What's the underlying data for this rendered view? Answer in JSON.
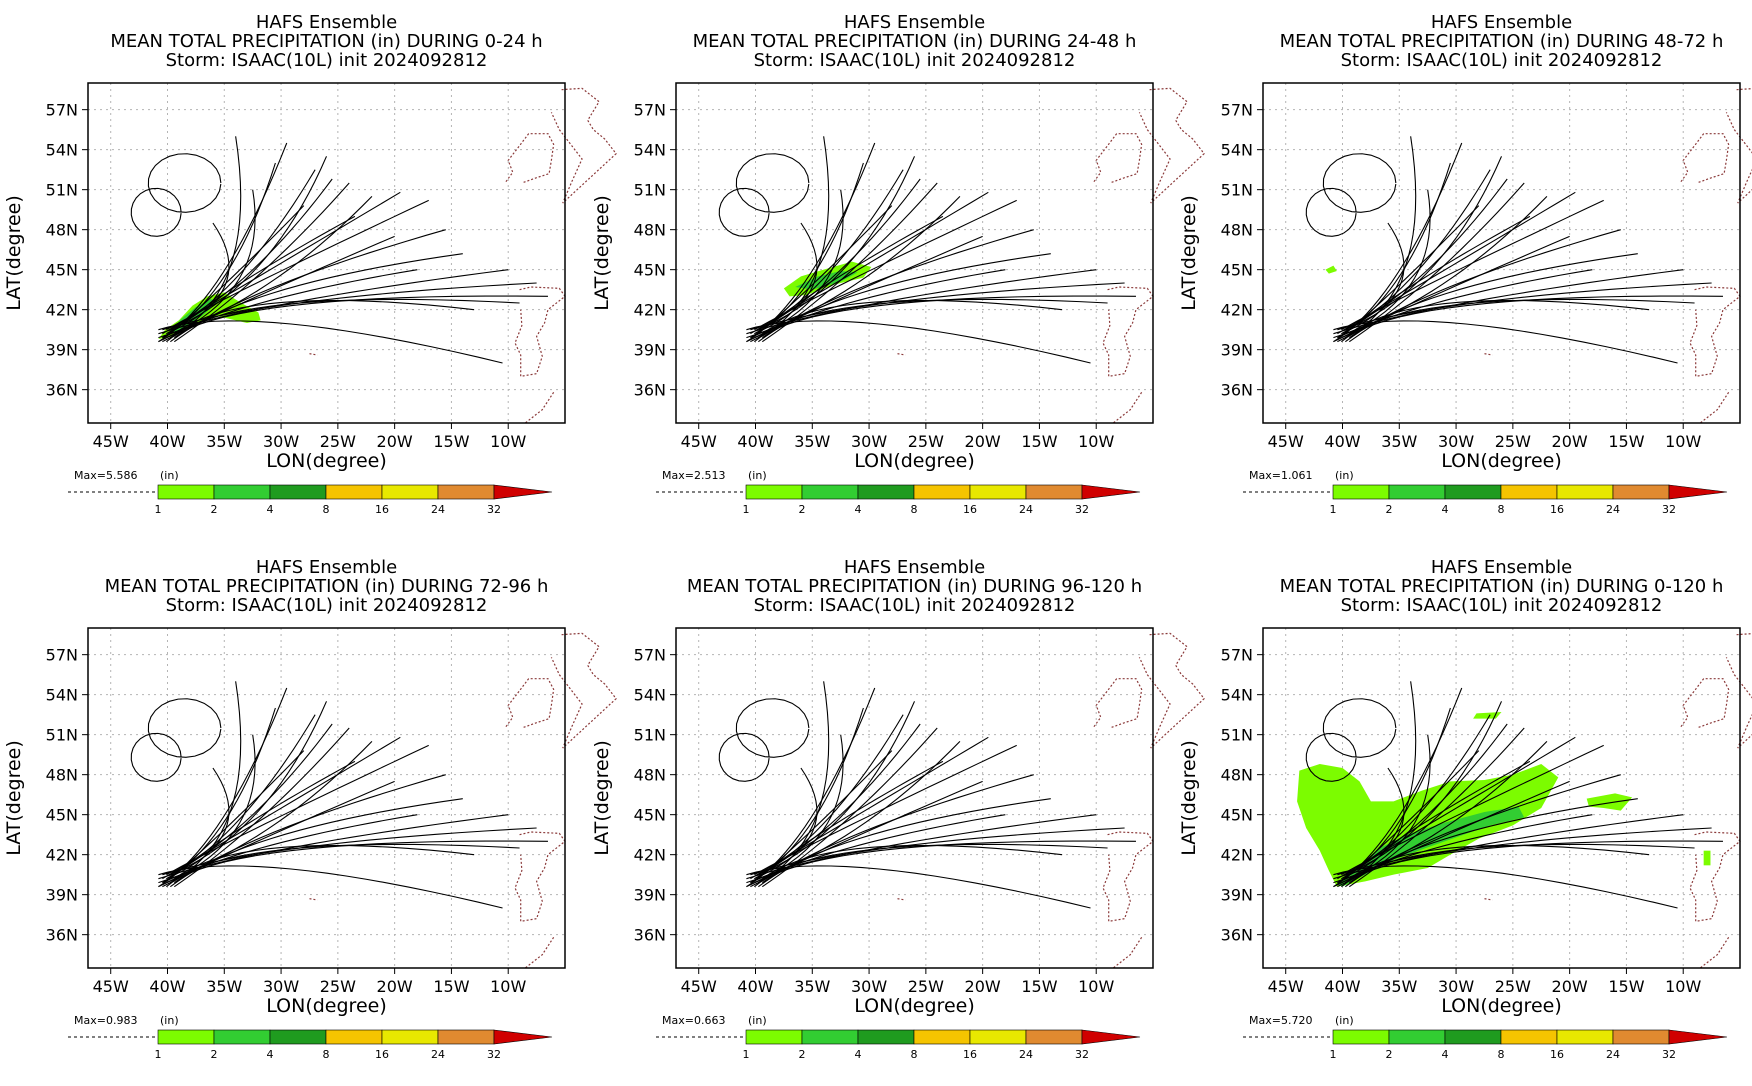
{
  "colors": {
    "track": "#000000",
    "grid": "#b4b4b4",
    "coast": "#8b3a3a",
    "precip_light": "#7cfc00",
    "precip_mid": "#32cd32"
  },
  "common": {
    "line1": "HAFS Ensemble",
    "line3": "Storm: ISAAC(10L) init 2024092812",
    "xlabel": "LON(degree)",
    "ylabel": "LAT(degree)",
    "units": "(in)",
    "x_ticks": [
      "45W",
      "40W",
      "35W",
      "30W",
      "25W",
      "20W",
      "15W",
      "10W"
    ],
    "y_ticks": [
      "36N",
      "39N",
      "42N",
      "45N",
      "48N",
      "51N",
      "54N",
      "57N"
    ],
    "colorbar_labels": [
      "1",
      "2",
      "4",
      "8",
      "16",
      "24",
      "32"
    ],
    "colorbar_colors": [
      "#7cfc00",
      "#32cd32",
      "#1f9b1f",
      "#f5c400",
      "#e8e800",
      "#e08a30",
      "#d00000"
    ]
  },
  "chart_data": [
    {
      "type": "map",
      "title": "MEAN TOTAL PRECIPITATION (in) DURING  0-24 h",
      "max_label": "Max=5.586",
      "xlim": [
        -47,
        -5
      ],
      "ylim": [
        33.5,
        59
      ],
      "precip": [
        {
          "level": 1,
          "polygon": [
            [
              -40.8,
              39.8
            ],
            [
              -40.2,
              40.5
            ],
            [
              -39.0,
              41.2
            ],
            [
              -37.8,
              42.3
            ],
            [
              -36.5,
              43.0
            ],
            [
              -35.0,
              43.3
            ],
            [
              -33.5,
              42.5
            ],
            [
              -32.0,
              41.8
            ],
            [
              -31.8,
              41.2
            ],
            [
              -33.0,
              41.0
            ],
            [
              -35.5,
              41.5
            ],
            [
              -37.5,
              41.0
            ],
            [
              -39.5,
              40.0
            ]
          ]
        },
        {
          "level": 2,
          "polygon": [
            [
              -40.0,
              40.2
            ],
            [
              -38.8,
              41.3
            ],
            [
              -37.5,
              42.2
            ],
            [
              -36.2,
              42.8
            ],
            [
              -35.5,
              42.6
            ],
            [
              -37.0,
              41.5
            ],
            [
              -39.0,
              40.4
            ]
          ]
        }
      ]
    },
    {
      "type": "map",
      "title": "MEAN TOTAL PRECIPITATION (in) DURING 24-48 h",
      "max_label": "Max=2.513",
      "xlim": [
        -47,
        -5
      ],
      "ylim": [
        33.5,
        59
      ],
      "precip": [
        {
          "level": 1,
          "polygon": [
            [
              -37.5,
              43.6
            ],
            [
              -36.0,
              44.5
            ],
            [
              -34.0,
              45.0
            ],
            [
              -31.5,
              45.6
            ],
            [
              -29.8,
              45.2
            ],
            [
              -30.5,
              44.4
            ],
            [
              -33.0,
              43.9
            ],
            [
              -35.5,
              43.1
            ],
            [
              -37.0,
              43.0
            ]
          ]
        },
        {
          "level": 2,
          "polygon": [
            [
              -36.5,
              43.7
            ],
            [
              -34.5,
              44.5
            ],
            [
              -32.5,
              44.9
            ],
            [
              -31.0,
              44.8
            ],
            [
              -32.5,
              44.1
            ],
            [
              -35.0,
              43.5
            ]
          ]
        }
      ]
    },
    {
      "type": "map",
      "title": "MEAN TOTAL PRECIPITATION (in) DURING 48-72 h",
      "max_label": "Max=1.061",
      "xlim": [
        -47,
        -5
      ],
      "ylim": [
        33.5,
        59
      ],
      "precip": [
        {
          "level": 1,
          "polygon": [
            [
              -41.5,
              45.0
            ],
            [
              -40.8,
              45.3
            ],
            [
              -40.5,
              44.9
            ],
            [
              -41.2,
              44.7
            ]
          ]
        }
      ]
    },
    {
      "type": "map",
      "title": "MEAN TOTAL PRECIPITATION (in) DURING 72-96 h",
      "max_label": "Max=0.983",
      "xlim": [
        -47,
        -5
      ],
      "ylim": [
        33.5,
        59
      ],
      "precip": []
    },
    {
      "type": "map",
      "title": "MEAN TOTAL PRECIPITATION (in) DURING 96-120 h",
      "max_label": "Max=0.663",
      "xlim": [
        -47,
        -5
      ],
      "ylim": [
        33.5,
        59
      ],
      "precip": []
    },
    {
      "type": "map",
      "title": "MEAN TOTAL PRECIPITATION (in) DURING 0-120 h",
      "max_label": "Max=5.720",
      "xlim": [
        -47,
        -5
      ],
      "ylim": [
        33.5,
        59
      ],
      "precip": [
        {
          "level": 1,
          "polygon": [
            [
              -43.8,
              48.3
            ],
            [
              -42.0,
              48.8
            ],
            [
              -40.0,
              48.5
            ],
            [
              -38.5,
              47.5
            ],
            [
              -37.5,
              46.0
            ],
            [
              -35.5,
              46.0
            ],
            [
              -33.0,
              46.8
            ],
            [
              -30.5,
              47.5
            ],
            [
              -27.5,
              47.6
            ],
            [
              -25.0,
              48.0
            ],
            [
              -22.5,
              48.8
            ],
            [
              -21.0,
              47.8
            ],
            [
              -22.5,
              45.5
            ],
            [
              -25.0,
              44.2
            ],
            [
              -28.0,
              43.2
            ],
            [
              -30.5,
              42.0
            ],
            [
              -32.5,
              41.0
            ],
            [
              -35.5,
              40.5
            ],
            [
              -38.0,
              40.0
            ],
            [
              -40.5,
              39.6
            ],
            [
              -41.2,
              40.8
            ],
            [
              -42.0,
              42.3
            ],
            [
              -43.2,
              44.0
            ],
            [
              -44.0,
              46.0
            ]
          ]
        },
        {
          "level": 1,
          "polygon": [
            [
              -28.2,
              52.6
            ],
            [
              -26.0,
              52.7
            ],
            [
              -26.5,
              52.2
            ],
            [
              -28.5,
              52.2
            ]
          ]
        },
        {
          "level": 1,
          "polygon": [
            [
              -18.5,
              46.2
            ],
            [
              -16.0,
              46.6
            ],
            [
              -14.5,
              46.3
            ],
            [
              -15.5,
              45.3
            ],
            [
              -17.0,
              45.5
            ],
            [
              -18.3,
              45.6
            ]
          ]
        },
        {
          "level": 1,
          "polygon": [
            [
              -8.2,
              42.3
            ],
            [
              -7.6,
              42.3
            ],
            [
              -7.6,
              41.2
            ],
            [
              -8.2,
              41.2
            ]
          ]
        },
        {
          "level": 2,
          "polygon": [
            [
              -40.5,
              39.8
            ],
            [
              -38.5,
              41.2
            ],
            [
              -36.5,
              42.6
            ],
            [
              -34.0,
              43.6
            ],
            [
              -31.0,
              44.4
            ],
            [
              -27.5,
              45.2
            ],
            [
              -24.5,
              45.6
            ],
            [
              -24.0,
              44.8
            ],
            [
              -27.0,
              44.2
            ],
            [
              -30.0,
              43.3
            ],
            [
              -33.0,
              42.4
            ],
            [
              -35.5,
              41.6
            ],
            [
              -38.0,
              40.5
            ],
            [
              -40.0,
              39.6
            ]
          ]
        }
      ]
    }
  ]
}
